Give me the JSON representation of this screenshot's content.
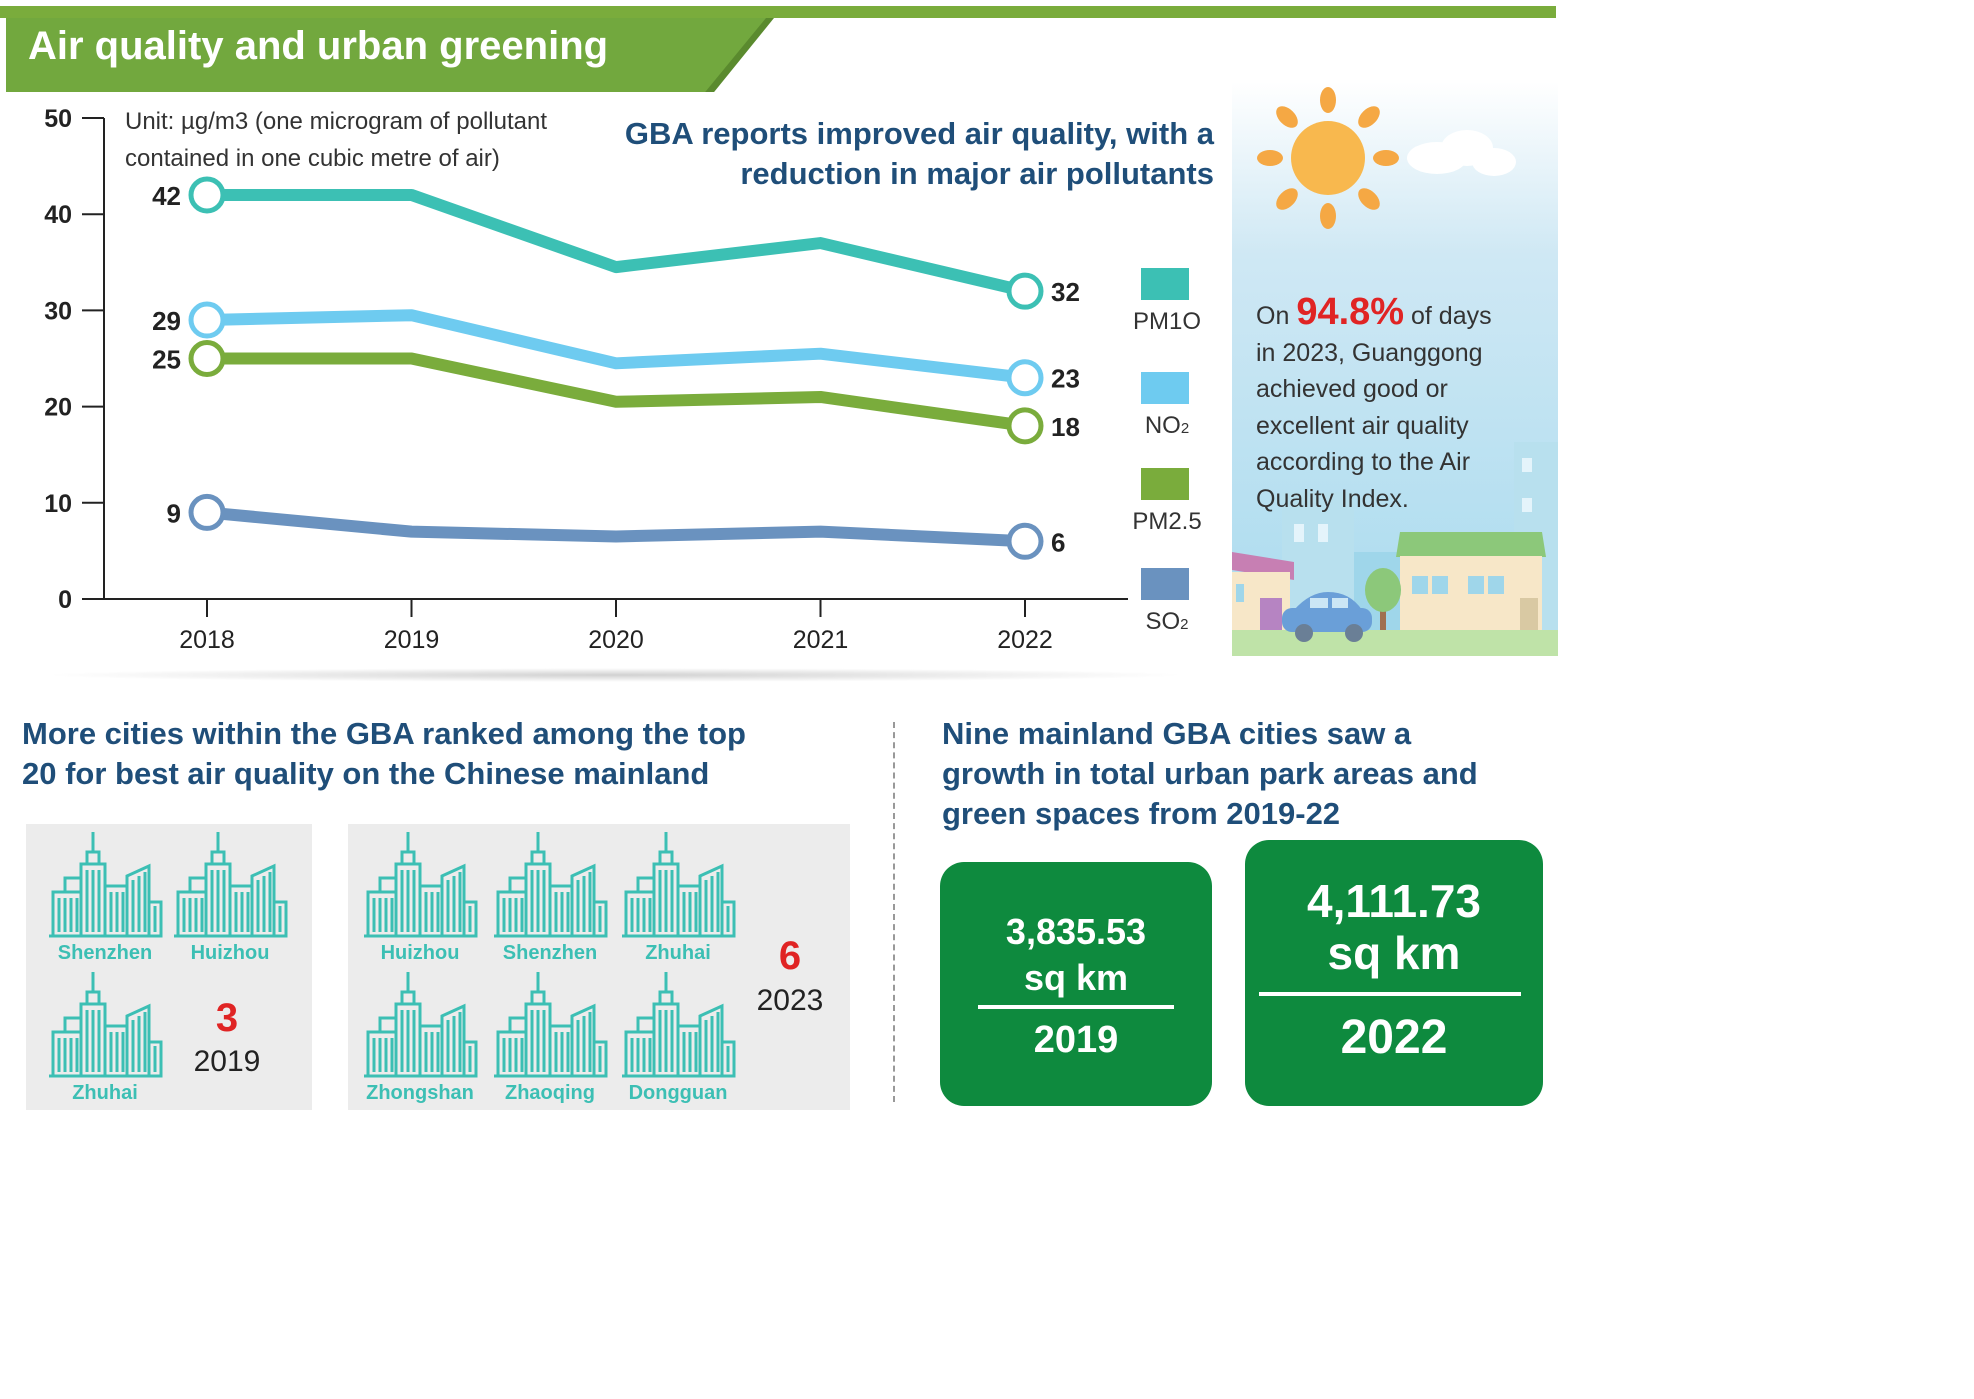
{
  "title": "Air quality and urban greening",
  "section1": {
    "headline": "GBA reports improved air quality, with a reduction in major air pollutants",
    "unit_line1": "Unit: µg/m3 (one microgram of pollutant",
    "unit_line2": "contained in one cubic metre of air)",
    "stat": {
      "prefix": "On",
      "value": "94.8%",
      "suffix": "of days",
      "line2": "in 2023, Guanggong",
      "line3": "achieved good or",
      "line4": "excellent air quality",
      "line5": "according to the Air",
      "line6": "Quality Index."
    }
  },
  "chart_data": {
    "type": "line",
    "x": [
      "2018",
      "2019",
      "2020",
      "2021",
      "2022"
    ],
    "ylim": [
      0,
      50
    ],
    "yticks": [
      "0",
      "10",
      "20",
      "30",
      "40",
      "50"
    ],
    "grid": false,
    "legend_position": "right",
    "series": [
      {
        "name": "PM1O",
        "legend_main": "PM1O",
        "legend_sub": "",
        "color": "#3cc0b4",
        "values": [
          42,
          42,
          34.5,
          37,
          32
        ],
        "start_label": "42",
        "end_label": "32"
      },
      {
        "name": "NO2",
        "legend_main": "NO",
        "legend_sub": "2",
        "color": "#6ecbf0",
        "values": [
          29,
          29.5,
          24.5,
          25.5,
          23
        ],
        "start_label": "29",
        "end_label": "23"
      },
      {
        "name": "PM2.5",
        "legend_main": "PM2.5",
        "legend_sub": "",
        "color": "#7aac3c",
        "values": [
          25,
          25,
          20.5,
          21,
          18
        ],
        "start_label": "25",
        "end_label": "18"
      },
      {
        "name": "SO2",
        "legend_main": "SO",
        "legend_sub": "2",
        "color": "#6a92bf",
        "values": [
          9,
          7,
          6.5,
          7,
          6
        ],
        "start_label": "9",
        "end_label": "6"
      }
    ]
  },
  "section2": {
    "headline_line1": "More cities within the GBA ranked among the top",
    "headline_line2": "20 for best air quality on the Chinese mainland",
    "y2019": {
      "count": "3",
      "year": "2019",
      "cities": [
        "Shenzhen",
        "Huizhou",
        "Zhuhai"
      ]
    },
    "y2023": {
      "count": "6",
      "year": "2023",
      "cities": [
        "Huizhou",
        "Shenzhen",
        "Zhuhai",
        "Zhongshan",
        "Zhaoqing",
        "Dongguan"
      ]
    },
    "icon": "city-skyline-icon",
    "icon_color": "#3cbfb4"
  },
  "section3": {
    "headline_line1": "Nine mainland GBA cities saw a",
    "headline_line2": "growth in total urban park areas and",
    "headline_line3": "green spaces from 2019-22",
    "box2019": {
      "value": "3,835.53",
      "unit": "sq km",
      "year": "2019"
    },
    "box2022": {
      "value": "4,111.73",
      "unit": "sq km",
      "year": "2022"
    },
    "box_color": "#0e8a3e"
  }
}
